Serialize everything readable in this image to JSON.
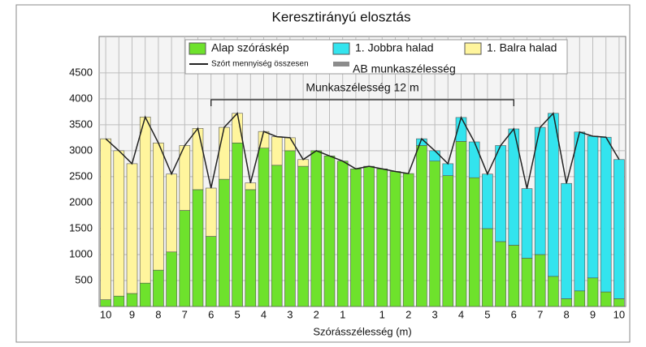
{
  "chart_data": {
    "type": "bar",
    "title": "Keresztirányú elosztás",
    "xlabel": "Szórásszélesség (m)",
    "annotation": "Munkaszélesség 12 m",
    "categories": [
      "10",
      null,
      "9",
      null,
      "8",
      null,
      "7",
      null,
      "6",
      null,
      "5",
      null,
      "4",
      null,
      "3",
      null,
      "2",
      null,
      "1",
      null,
      null,
      "1",
      null,
      "2",
      null,
      "3",
      null,
      "4",
      null,
      "5",
      null,
      "6",
      null,
      "7",
      null,
      "8",
      null,
      "9",
      null,
      "10"
    ],
    "series": [
      {
        "name": "Alap szóráskép",
        "color": "#6ee22c",
        "values": [
          130,
          200,
          250,
          450,
          700,
          1050,
          1850,
          2250,
          1350,
          2450,
          3150,
          2250,
          3050,
          2720,
          3000,
          2700,
          3000,
          2900,
          2800,
          2650,
          2700,
          2650,
          2600,
          2560,
          3100,
          2800,
          2520,
          3180,
          2480,
          1500,
          1250,
          1180,
          930,
          1000,
          580,
          150,
          300,
          550,
          280,
          150
        ]
      },
      {
        "name": "1. Jobbra halad",
        "color": "#33e4ee",
        "values": [
          null,
          null,
          null,
          null,
          null,
          null,
          null,
          null,
          null,
          null,
          null,
          null,
          null,
          null,
          null,
          null,
          null,
          null,
          null,
          null,
          null,
          null,
          null,
          null,
          130,
          200,
          230,
          460,
          690,
          1050,
          1850,
          2240,
          1340,
          2450,
          3140,
          2220,
          3060,
          2730,
          2980,
          2680
        ]
      },
      {
        "name": "1. Balra halad",
        "color": "#fff59d",
        "values": [
          3100,
          2800,
          2500,
          3200,
          2450,
          1500,
          1250,
          1180,
          930,
          1000,
          570,
          130,
          320,
          550,
          250,
          130,
          null,
          null,
          null,
          null,
          null,
          null,
          null,
          null,
          null,
          null,
          null,
          null,
          null,
          null,
          null,
          null,
          null,
          null,
          null,
          null,
          null,
          null,
          null,
          null
        ]
      },
      {
        "name": "Szórt mennyiség összesen",
        "color": "#222222",
        "type": "line",
        "values": [
          3230,
          3000,
          2750,
          3650,
          3150,
          2550,
          3100,
          3430,
          2280,
          3450,
          3720,
          2380,
          3370,
          3270,
          3250,
          2830,
          3000,
          2900,
          2800,
          2650,
          2700,
          2650,
          2600,
          2560,
          3230,
          3000,
          2750,
          3640,
          3170,
          2550,
          3100,
          3420,
          2270,
          3450,
          3720,
          2370,
          3360,
          3280,
          3260,
          2830
        ]
      }
    ],
    "legend_extra": {
      "name": "AB munkaszélesség",
      "color": "#8c8c8c"
    },
    "ylim": [
      0,
      5200
    ],
    "yticks": [
      500,
      1000,
      1500,
      2000,
      2500,
      3000,
      3500,
      4000,
      4500
    ],
    "grid": true
  }
}
